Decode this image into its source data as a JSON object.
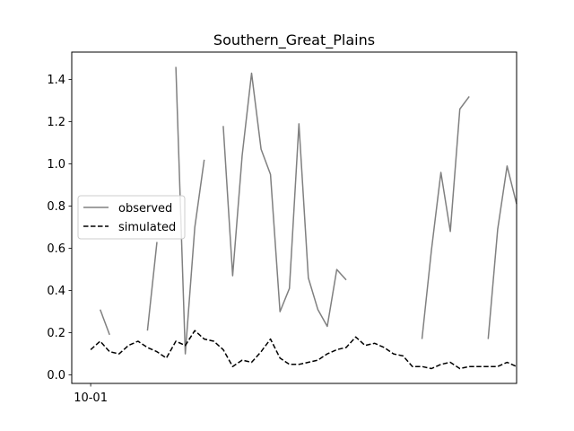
{
  "chart_data": {
    "type": "line",
    "title": "Southern_Great_Plains",
    "xlabel": "",
    "ylabel": "",
    "x_tick_labels": [
      "10-01"
    ],
    "y_ticks": [
      0.0,
      0.2,
      0.4,
      0.6,
      0.8,
      1.0,
      1.2,
      1.4
    ],
    "y_tick_labels": [
      "0.0",
      "0.2",
      "0.4",
      "0.6",
      "0.8",
      "1.0",
      "1.2",
      "1.4"
    ],
    "xlim": [
      -2,
      45
    ],
    "ylim": [
      -0.04,
      1.53
    ],
    "grid": false,
    "legend_position": "center-left",
    "series": [
      {
        "name": "observed",
        "color": "#808080",
        "style": "solid",
        "values": [
          null,
          0.31,
          0.19,
          null,
          null,
          null,
          0.21,
          0.63,
          null,
          1.46,
          0.1,
          0.7,
          1.02,
          null,
          1.18,
          0.47,
          1.04,
          1.43,
          1.07,
          0.95,
          0.3,
          0.41,
          1.19,
          0.46,
          0.31,
          0.23,
          0.5,
          0.45,
          null,
          null,
          null,
          null,
          null,
          null,
          null,
          0.17,
          0.59,
          0.96,
          0.68,
          1.26,
          1.32,
          null,
          0.17,
          0.69,
          0.99,
          0.81
        ]
      },
      {
        "name": "simulated",
        "color": "#000000",
        "style": "dashed",
        "values": [
          0.12,
          0.16,
          0.11,
          0.1,
          0.14,
          0.16,
          0.13,
          0.11,
          0.08,
          0.16,
          0.14,
          0.21,
          0.17,
          0.16,
          0.12,
          0.04,
          0.07,
          0.06,
          0.11,
          0.17,
          0.08,
          0.05,
          0.05,
          0.06,
          0.07,
          0.1,
          0.12,
          0.13,
          0.18,
          0.14,
          0.15,
          0.13,
          0.1,
          0.09,
          0.04,
          0.04,
          0.03,
          0.05,
          0.06,
          0.03,
          0.04,
          0.04,
          0.04,
          0.04,
          0.06,
          0.04
        ]
      }
    ]
  }
}
